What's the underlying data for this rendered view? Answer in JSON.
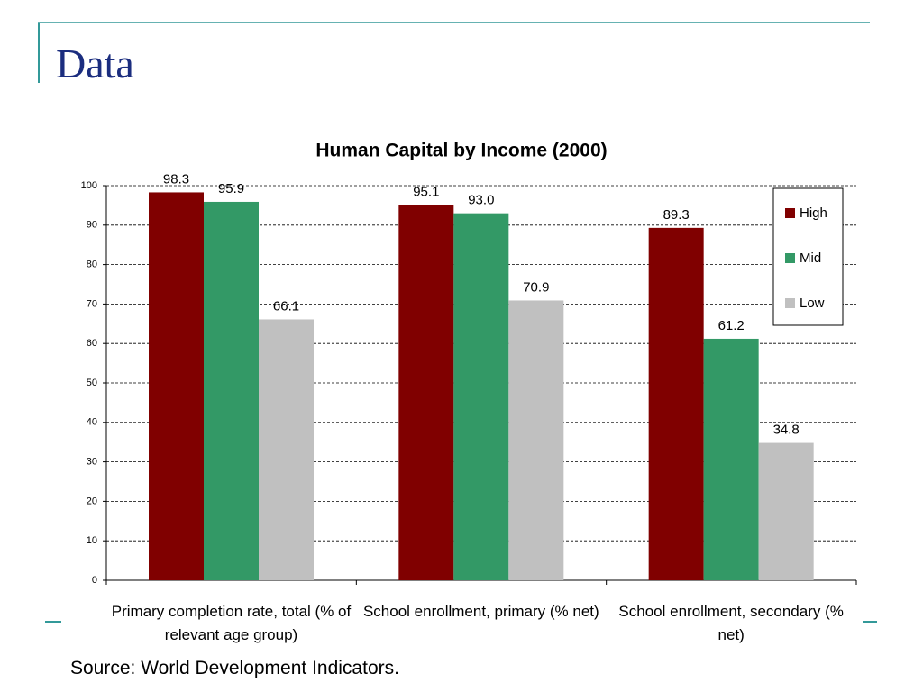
{
  "slide_title": "Data",
  "chart_data": {
    "type": "bar",
    "title": "Human Capital by Income (2000)",
    "categories": [
      "Primary completion rate, total (% of relevant age group)",
      "School enrollment, primary (% net)",
      "School enrollment, secondary (% net)"
    ],
    "series": [
      {
        "name": "High",
        "color": "#800000",
        "values": [
          98.3,
          95.1,
          89.3
        ],
        "value_labels": [
          "98.3",
          "95.1",
          "89.3"
        ]
      },
      {
        "name": "Mid",
        "color": "#339966",
        "values": [
          95.9,
          93.0,
          61.2
        ],
        "value_labels": [
          "95.9",
          "93.0",
          "61.2"
        ]
      },
      {
        "name": "Low",
        "color": "#c0c0c0",
        "values": [
          66.1,
          70.9,
          34.8
        ],
        "value_labels": [
          "66.1",
          "70.9",
          "34.8"
        ]
      }
    ],
    "ylim": [
      0,
      100
    ],
    "yticks": [
      0,
      10,
      20,
      30,
      40,
      50,
      60,
      70,
      80,
      90,
      100
    ],
    "grid": true,
    "legend": "right"
  },
  "source": "Source: World Development Indicators."
}
